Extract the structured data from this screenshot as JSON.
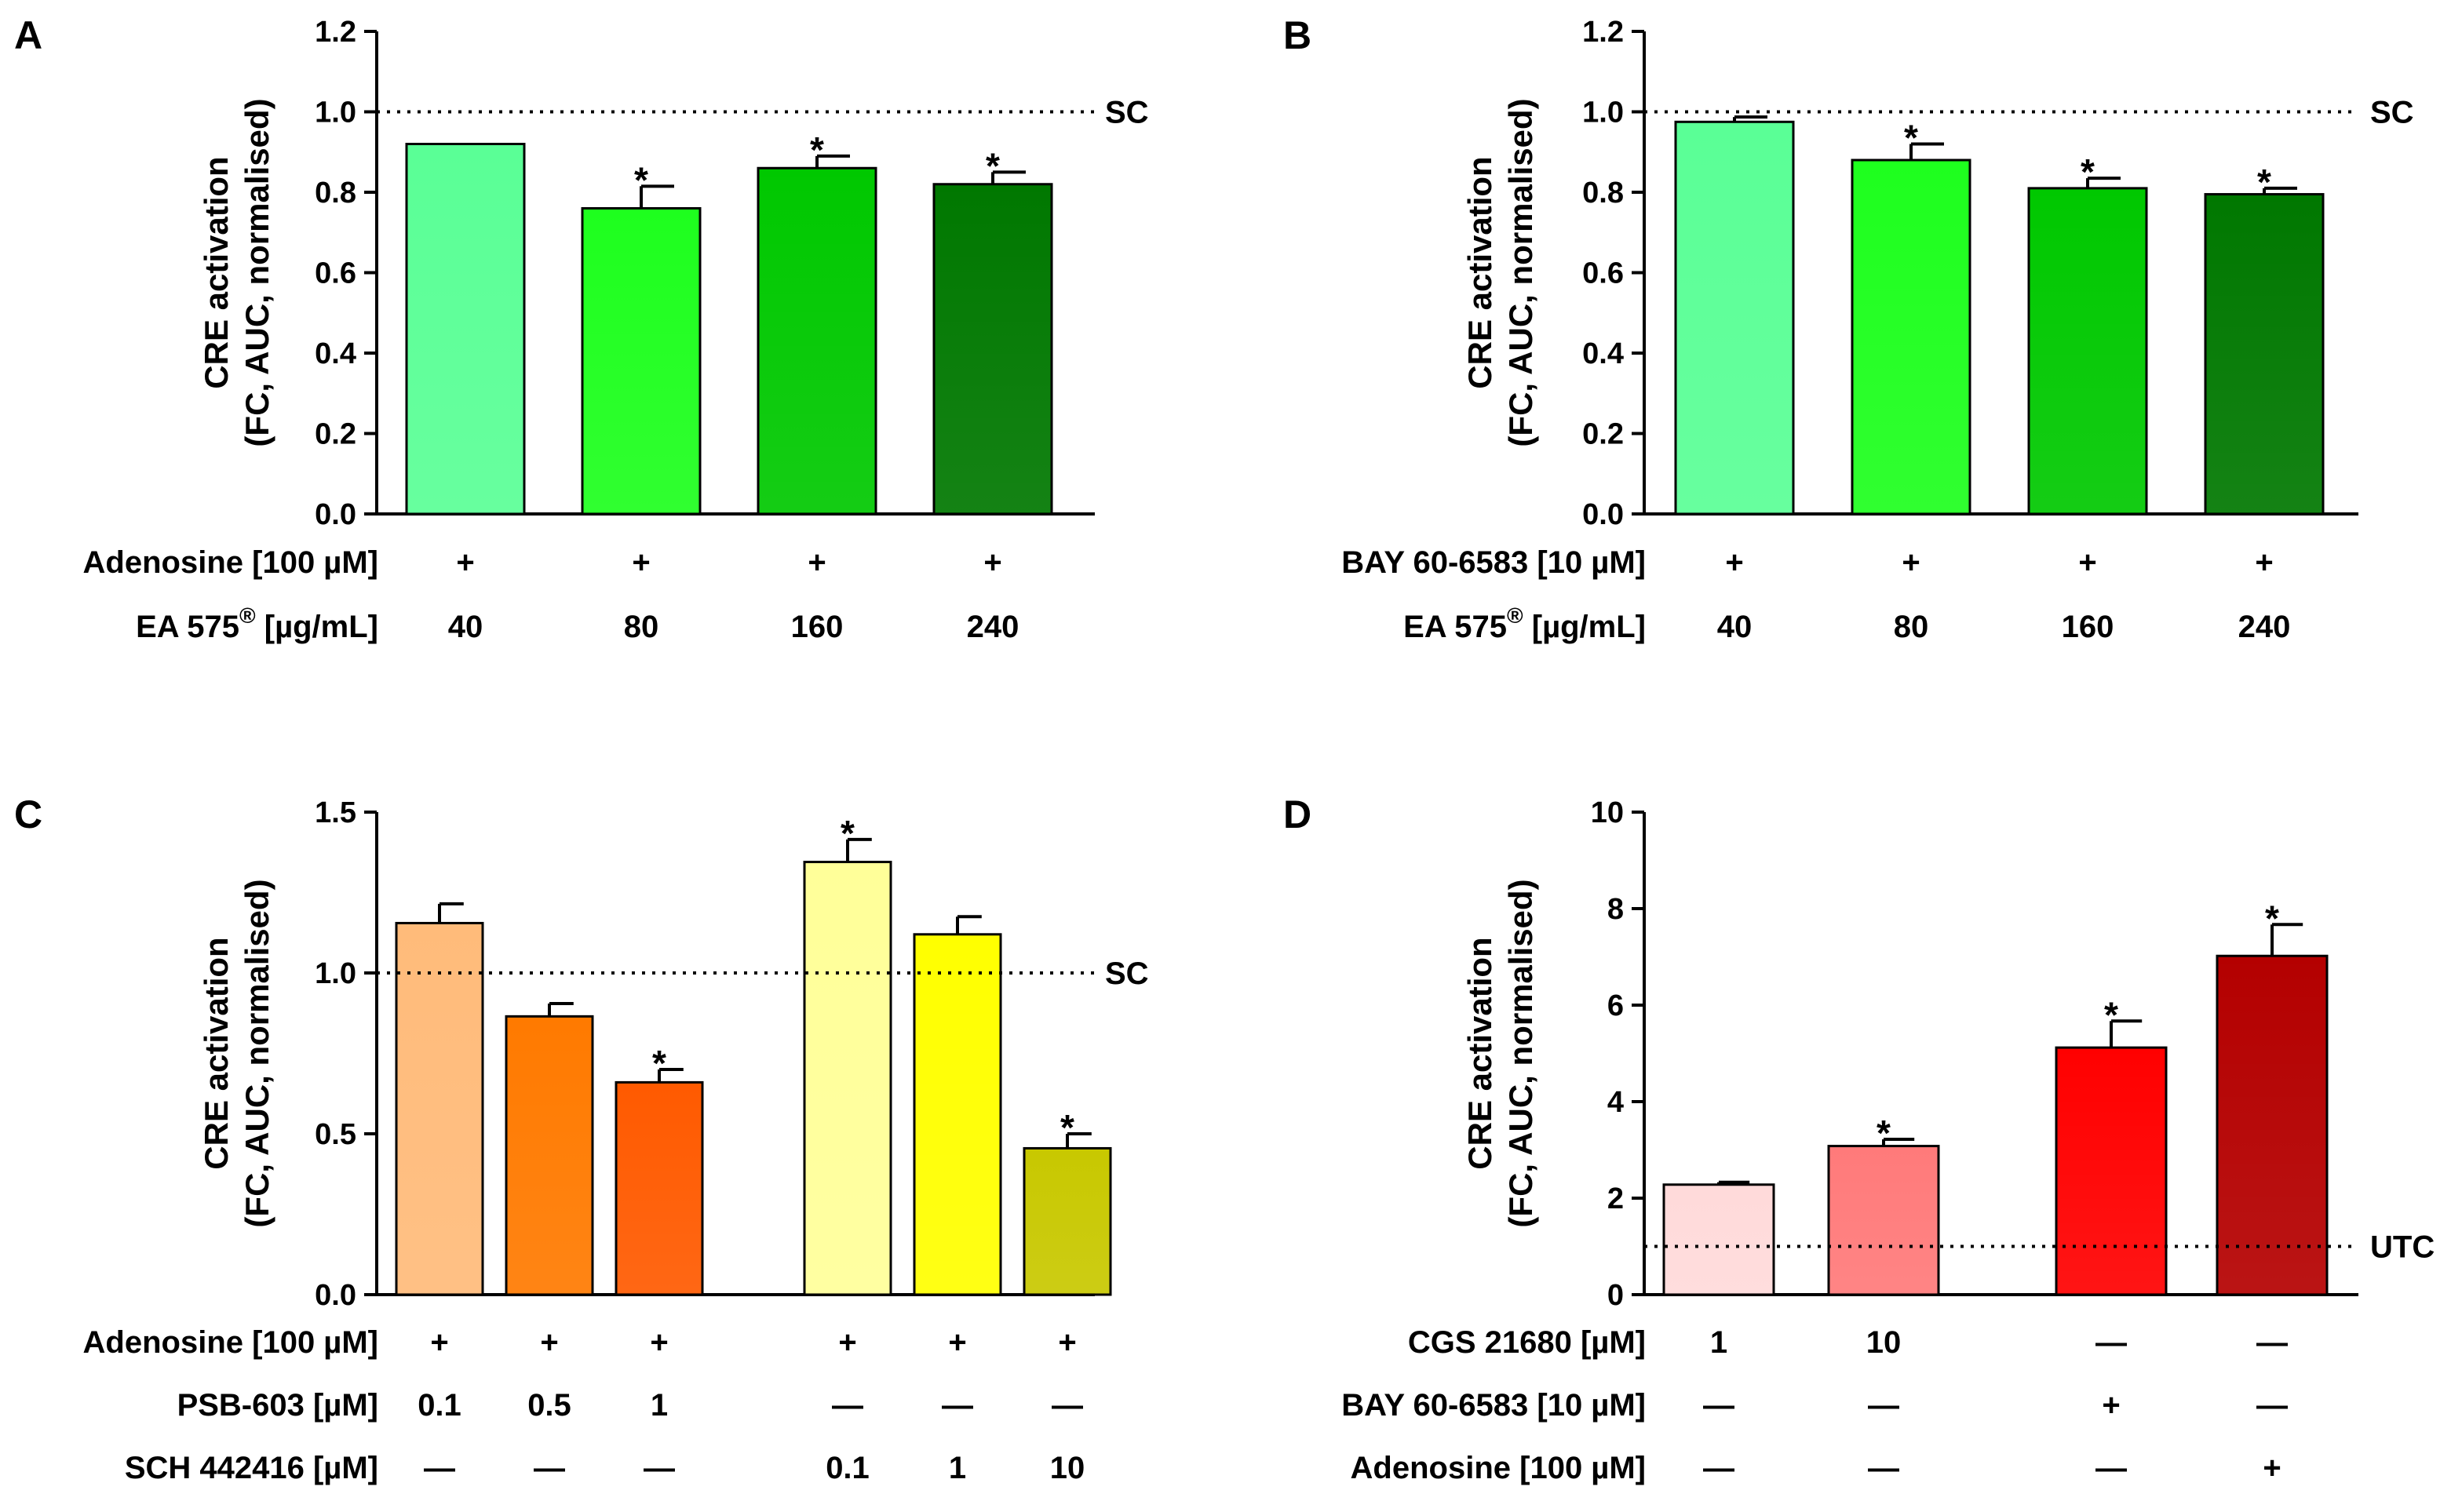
{
  "chart_data": [
    {
      "panel": "A",
      "type": "bar",
      "ylabel_line1": "CRE activation",
      "ylabel_line2": "(FC, AUC, normalised)",
      "ylim": [
        0,
        1.2
      ],
      "yticks": [
        "0.0",
        "0.2",
        "0.4",
        "0.6",
        "0.8",
        "1.0",
        "1.2"
      ],
      "reference": {
        "value": 1.0,
        "label": "SC"
      },
      "bars": [
        {
          "value": 0.92,
          "error": 0.0,
          "sig": "",
          "color": "#5aff96"
        },
        {
          "value": 0.76,
          "error": 0.055,
          "sig": "*",
          "color": "#1eff1e"
        },
        {
          "value": 0.86,
          "error": 0.03,
          "sig": "*",
          "color": "#00c800"
        },
        {
          "value": 0.82,
          "error": 0.03,
          "sig": "*",
          "color": "#007800"
        }
      ],
      "rows": [
        {
          "label": "Adenosine [100 µM]",
          "values": [
            "+",
            "+",
            "+",
            "+"
          ]
        },
        {
          "label": "EA 575",
          "sup": "®",
          "label_suffix": " [µg/mL]",
          "values": [
            "40",
            "80",
            "160",
            "240"
          ]
        }
      ]
    },
    {
      "panel": "B",
      "type": "bar",
      "ylabel_line1": "CRE activation",
      "ylabel_line2": "(FC, AUC, normalised)",
      "ylim": [
        0,
        1.2
      ],
      "yticks": [
        "0.0",
        "0.2",
        "0.4",
        "0.6",
        "0.8",
        "1.0",
        "1.2"
      ],
      "reference": {
        "value": 1.0,
        "label": "SC"
      },
      "bars": [
        {
          "value": 0.975,
          "error": 0.012,
          "sig": "",
          "color": "#5aff96"
        },
        {
          "value": 0.88,
          "error": 0.04,
          "sig": "*",
          "color": "#1eff1e"
        },
        {
          "value": 0.81,
          "error": 0.025,
          "sig": "*",
          "color": "#00c800"
        },
        {
          "value": 0.795,
          "error": 0.015,
          "sig": "*",
          "color": "#007800"
        }
      ],
      "rows": [
        {
          "label": "BAY 60-6583 [10 µM]",
          "values": [
            "+",
            "+",
            "+",
            "+"
          ]
        },
        {
          "label": "EA 575",
          "sup": "®",
          "label_suffix": " [µg/mL]",
          "values": [
            "40",
            "80",
            "160",
            "240"
          ]
        }
      ]
    },
    {
      "panel": "C",
      "type": "bar",
      "ylabel_line1": "CRE activation",
      "ylabel_line2": "(FC, AUC, normalised)",
      "ylim": [
        0,
        1.5
      ],
      "yticks": [
        "0.0",
        "0.5",
        "1.0",
        "1.5"
      ],
      "reference": {
        "value": 1.0,
        "label": "SC"
      },
      "bars": [
        {
          "value": 1.155,
          "error": 0.06,
          "sig": "",
          "color": "#ffbb7a"
        },
        {
          "value": 0.865,
          "error": 0.04,
          "sig": "",
          "color": "#ff7a00"
        },
        {
          "value": 0.66,
          "error": 0.04,
          "sig": "*",
          "color": "#ff5a00"
        },
        {
          "value": 1.345,
          "error": 0.07,
          "sig": "*",
          "color": "#ffff99"
        },
        {
          "value": 1.12,
          "error": 0.055,
          "sig": "",
          "color": "#ffff00"
        },
        {
          "value": 0.455,
          "error": 0.045,
          "sig": "*",
          "color": "#c8c800"
        }
      ],
      "rows": [
        {
          "label": "Adenosine [100 µM]",
          "values": [
            "+",
            "+",
            "+",
            "+",
            "+",
            "+"
          ]
        },
        {
          "label": "PSB-603 [µM]",
          "values": [
            "0.1",
            "0.5",
            "1",
            "—",
            "—",
            "—"
          ]
        },
        {
          "label": "SCH 442416 [µM]",
          "values": [
            "—",
            "—",
            "—",
            "0.1",
            "1",
            "10"
          ]
        }
      ]
    },
    {
      "panel": "D",
      "type": "bar",
      "ylabel_line1": "CRE activation",
      "ylabel_line2": "(FC, AUC, normalised)",
      "ylim": [
        0,
        10
      ],
      "yticks": [
        "0",
        "2",
        "4",
        "6",
        "8",
        "10"
      ],
      "reference": {
        "value": 1.0,
        "label": "UTC"
      },
      "bars": [
        {
          "value": 2.28,
          "error": 0.05,
          "sig": "",
          "color": "#ffdada"
        },
        {
          "value": 3.08,
          "error": 0.14,
          "sig": "*",
          "color": "#ff7a7a"
        },
        {
          "value": 5.12,
          "error": 0.55,
          "sig": "*",
          "color": "#ff0000"
        },
        {
          "value": 7.02,
          "error": 0.65,
          "sig": "*",
          "color": "#b40000"
        }
      ],
      "rows": [
        {
          "label": "CGS 21680 [µM]",
          "values": [
            "1",
            "10",
            "—",
            "—"
          ]
        },
        {
          "label": "BAY 60-6583 [10 µM]",
          "values": [
            "—",
            "—",
            "+",
            "—"
          ]
        },
        {
          "label": "Adenosine [100 µM]",
          "values": [
            "—",
            "—",
            "—",
            "+"
          ]
        }
      ]
    }
  ]
}
